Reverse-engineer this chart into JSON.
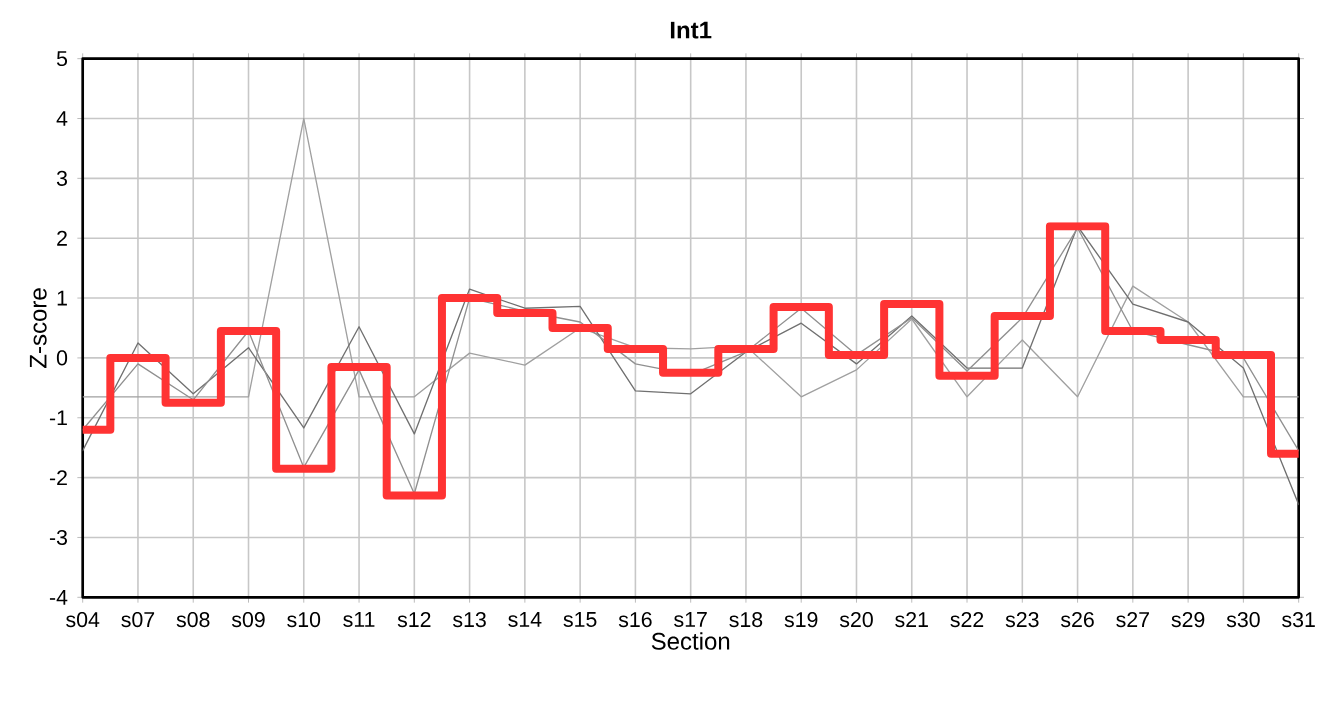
{
  "chart_data": {
    "type": "line",
    "title": "Int1",
    "xlabel": "Section",
    "ylabel": "Z-score",
    "categories": [
      "s04",
      "s07",
      "s08",
      "s09",
      "s10",
      "s11",
      "s12",
      "s13",
      "s14",
      "s15",
      "s16",
      "s17",
      "s18",
      "s19",
      "s20",
      "s21",
      "s22",
      "s23",
      "s26",
      "s27",
      "s29",
      "s30",
      "s31"
    ],
    "ylim": [
      -4,
      5
    ],
    "yticks": [
      -4,
      -3,
      -2,
      -1,
      0,
      1,
      2,
      3,
      4,
      5
    ],
    "grid": true,
    "series": [
      {
        "type": "line",
        "color": "#a0a0a0",
        "values": [
          -0.65,
          -0.65,
          -0.65,
          -0.65,
          4.0,
          -0.65,
          -0.65,
          0.08,
          -0.12,
          0.5,
          0.17,
          0.15,
          0.2,
          -0.65,
          -0.2,
          0.65,
          -0.65,
          0.3,
          -0.65,
          1.2,
          0.6,
          -0.65,
          -0.65
        ]
      },
      {
        "type": "line",
        "color": "#707070",
        "values": [
          -1.55,
          0.25,
          -0.6,
          0.17,
          -1.17,
          0.52,
          -1.27,
          1.15,
          0.83,
          0.86,
          -0.55,
          -0.6,
          0.1,
          0.58,
          -0.1,
          0.7,
          -0.17,
          -0.17,
          2.2,
          0.9,
          0.6,
          -0.17,
          -2.45
        ]
      },
      {
        "type": "line",
        "color": "#909090",
        "values": [
          -1.2,
          -0.1,
          -0.7,
          0.45,
          -1.83,
          -0.2,
          -2.27,
          1.0,
          0.78,
          0.6,
          -0.1,
          -0.28,
          0.1,
          0.83,
          0.05,
          0.67,
          -0.22,
          0.67,
          2.17,
          0.45,
          0.22,
          0.0,
          -1.55
        ]
      },
      {
        "type": "step",
        "color": "#ff3333",
        "values": [
          -1.2,
          0.0,
          -0.75,
          0.45,
          -1.85,
          -0.15,
          -2.3,
          1.0,
          0.75,
          0.5,
          0.15,
          -0.25,
          0.15,
          0.85,
          0.05,
          0.9,
          -0.3,
          0.7,
          2.2,
          0.45,
          0.3,
          0.05,
          -1.6
        ]
      }
    ]
  }
}
